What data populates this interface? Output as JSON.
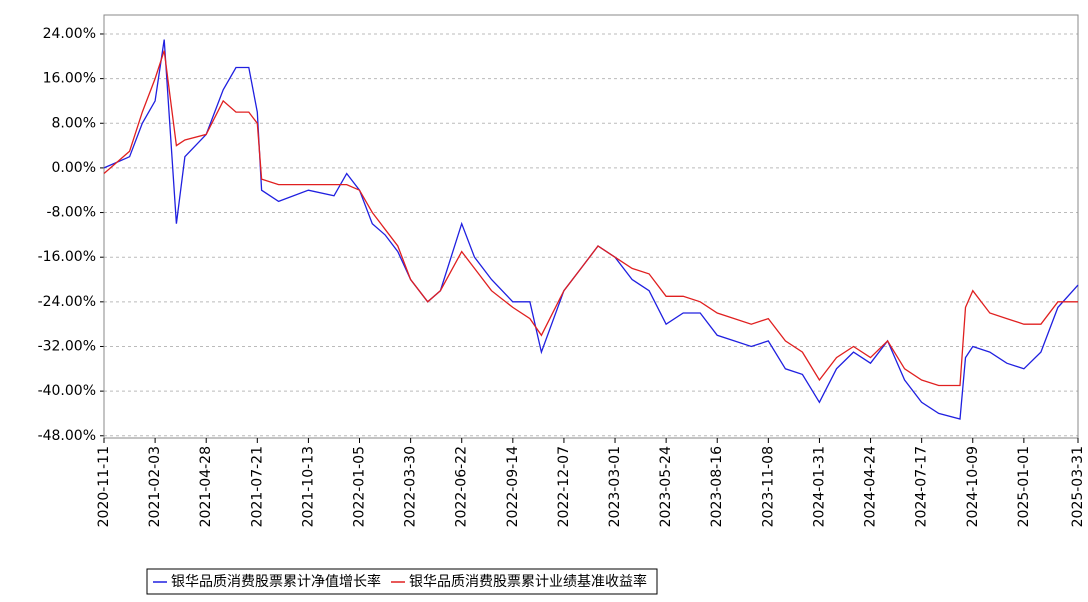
{
  "chart_data": {
    "type": "line",
    "x": [
      "2020-11-11",
      "2020-12-23",
      "2021-01-13",
      "2021-02-03",
      "2021-02-18",
      "2021-03-10",
      "2021-03-24",
      "2021-04-28",
      "2021-05-26",
      "2021-06-16",
      "2021-07-07",
      "2021-07-21",
      "2021-07-28",
      "2021-08-25",
      "2021-10-13",
      "2021-11-24",
      "2021-12-15",
      "2022-01-05",
      "2022-01-26",
      "2022-02-16",
      "2022-03-09",
      "2022-03-30",
      "2022-04-27",
      "2022-05-18",
      "2022-06-22",
      "2022-07-13",
      "2022-08-10",
      "2022-09-14",
      "2022-10-12",
      "2022-10-31",
      "2022-12-07",
      "2023-01-04",
      "2023-02-01",
      "2023-03-01",
      "2023-03-29",
      "2023-04-26",
      "2023-05-24",
      "2023-06-21",
      "2023-07-19",
      "2023-08-16",
      "2023-09-13",
      "2023-10-11",
      "2023-11-08",
      "2023-12-06",
      "2024-01-03",
      "2024-01-31",
      "2024-02-28",
      "2024-03-27",
      "2024-04-24",
      "2024-05-22",
      "2024-06-19",
      "2024-07-17",
      "2024-08-14",
      "2024-09-18",
      "2024-09-27",
      "2024-10-09",
      "2024-11-06",
      "2024-12-04",
      "2025-01-01",
      "2025-01-29",
      "2025-02-26",
      "2025-03-31"
    ],
    "series": [
      {
        "name": "银华品质消费股票累计净值增长率",
        "color": "#2020e0",
        "values": [
          0,
          2,
          8,
          12,
          23,
          -10,
          2,
          6,
          14,
          18,
          18,
          10,
          -4,
          -6,
          -4,
          -5,
          -1,
          -4,
          -10,
          -12,
          -15,
          -20,
          -24,
          -22,
          -10,
          -16,
          -20,
          -24,
          -24,
          -33,
          -22,
          -18,
          -14,
          -16,
          -20,
          -22,
          -28,
          -26,
          -26,
          -30,
          -31,
          -32,
          -31,
          -36,
          -37,
          -42,
          -36,
          -33,
          -35,
          -31,
          -38,
          -42,
          -44,
          -45,
          -34,
          -32,
          -33,
          -35,
          -36,
          -33,
          -25,
          -21
        ]
      },
      {
        "name": "银华品质消费股票累计业绩基准收益率",
        "color": "#e02020",
        "values": [
          -1,
          3,
          10,
          16,
          21,
          4,
          5,
          6,
          12,
          10,
          10,
          8,
          -2,
          -3,
          -3,
          -3,
          -3,
          -4,
          -8,
          -11,
          -14,
          -20,
          -24,
          -22,
          -15,
          -18,
          -22,
          -25,
          -27,
          -30,
          -22,
          -18,
          -14,
          -16,
          -18,
          -19,
          -23,
          -23,
          -24,
          -26,
          -27,
          -28,
          -27,
          -31,
          -33,
          -38,
          -34,
          -32,
          -34,
          -31,
          -36,
          -38,
          -39,
          -39,
          -25,
          -22,
          -26,
          -27,
          -28,
          -28,
          -24,
          -24
        ]
      }
    ],
    "xlim": [
      "2020-11-11",
      "2025-03-31"
    ],
    "xticks": [
      "2020-11-11",
      "2021-02-03",
      "2021-04-28",
      "2021-07-21",
      "2021-10-13",
      "2022-01-05",
      "2022-03-30",
      "2022-06-22",
      "2022-09-14",
      "2022-12-07",
      "2023-03-01",
      "2023-05-24",
      "2023-08-16",
      "2023-11-08",
      "2024-01-31",
      "2024-04-24",
      "2024-07-17",
      "2024-10-09",
      "2025-01-01",
      "2025-03-31"
    ],
    "ylim": [
      -48.4,
      27.4
    ],
    "yticks": [
      {
        "value": 24,
        "label": "24.00%"
      },
      {
        "value": 16,
        "label": "16.00%"
      },
      {
        "value": 8,
        "label": "8.00%"
      },
      {
        "value": 0,
        "label": "0.00%"
      },
      {
        "value": -8,
        "label": "-8.00%"
      },
      {
        "value": -16,
        "label": "-16.00%"
      },
      {
        "value": -24,
        "label": "-24.00%"
      },
      {
        "value": -32,
        "label": "-32.00%"
      },
      {
        "value": -40,
        "label": "-40.00%"
      },
      {
        "value": -48,
        "label": "-48.00%"
      }
    ],
    "grid": true
  }
}
